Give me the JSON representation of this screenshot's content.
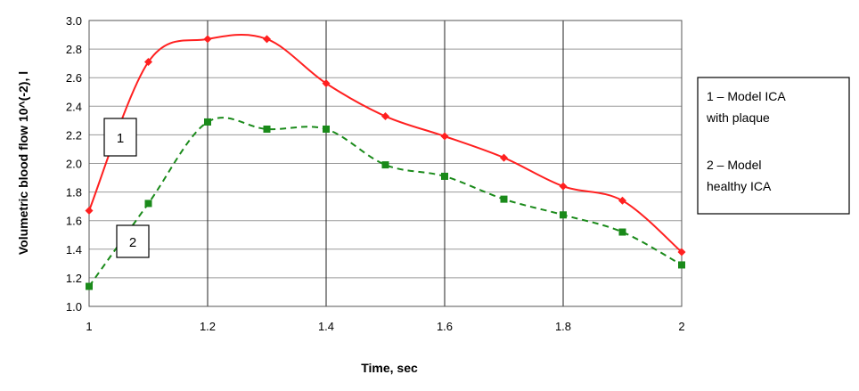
{
  "chart_data": {
    "type": "line",
    "xlabel": "Time, sec",
    "ylabel": "Volumetric  blood flow 10^(-2), l",
    "xlim": [
      1,
      2
    ],
    "ylim": [
      1.0,
      3.0
    ],
    "x_ticks": [
      "1",
      "1.2",
      "1.4",
      "1.6",
      "1.8",
      "2"
    ],
    "y_ticks": [
      "1.0",
      "1.2",
      "1.4",
      "1.6",
      "1.8",
      "2.0",
      "2.2",
      "2.4",
      "2.6",
      "2.8",
      "3.0"
    ],
    "grid": "vertical and horizontal",
    "x": [
      1.0,
      1.1,
      1.2,
      1.3,
      1.4,
      1.5,
      1.6,
      1.7,
      1.8,
      1.9,
      2.0
    ],
    "series": [
      {
        "name": "1",
        "values": [
          1.67,
          2.71,
          2.87,
          2.87,
          2.56,
          2.33,
          2.19,
          2.04,
          1.84,
          1.74,
          1.38
        ],
        "color": "#ff2020",
        "marker": "diamond",
        "line_style": "solid"
      },
      {
        "name": "2",
        "values": [
          1.14,
          1.72,
          2.29,
          2.24,
          2.24,
          1.99,
          1.91,
          1.75,
          1.64,
          1.52,
          1.29
        ],
        "color": "#1a8a1a",
        "marker": "square",
        "line_style": "dashed"
      }
    ],
    "legend": {
      "placement": "right",
      "entries": [
        "1 – Model ICA",
        "with plaque",
        "2 – Model",
        "healthy ICA"
      ]
    },
    "annotations": [
      "1",
      "2"
    ]
  }
}
